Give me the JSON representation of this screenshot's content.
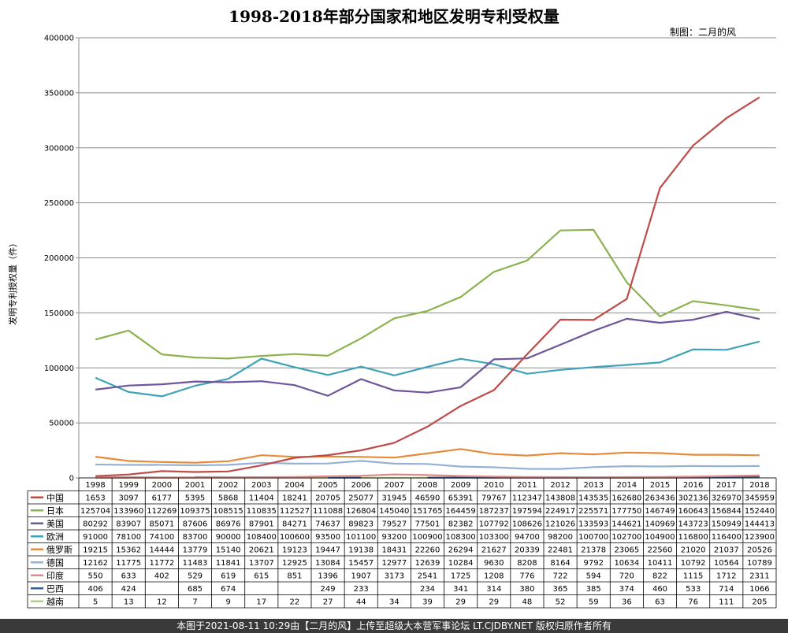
{
  "chart_data": {
    "type": "line",
    "title": "1998-2018年部分国家和地区发明专利受权量",
    "credit": "制图：二月的风",
    "ylabel": "发明专利授权量（件）",
    "ylim": [
      0,
      400000
    ],
    "yticks": [
      "0",
      "50000",
      "100000",
      "150000",
      "200000",
      "250000",
      "300000",
      "350000",
      "400000"
    ],
    "grid": "horizontal",
    "legend": "data-table-bottom",
    "categories": [
      "1998",
      "1999",
      "2000",
      "2001",
      "2002",
      "2003",
      "2004",
      "2005",
      "2006",
      "2007",
      "2008",
      "2009",
      "2010",
      "2011",
      "2012",
      "2013",
      "2014",
      "2015",
      "2016",
      "2017",
      "2018"
    ],
    "series": [
      {
        "name": "中国",
        "color": "#be4b48",
        "values": [
          1653,
          3097,
          6177,
          5395,
          5868,
          11404,
          18241,
          20705,
          25077,
          31945,
          46590,
          65391,
          79767,
          112347,
          143808,
          143535,
          162680,
          263436,
          302136,
          326970,
          345959
        ]
      },
      {
        "name": "日本",
        "color": "#8cb24f",
        "values": [
          125704,
          133960,
          112269,
          109375,
          108515,
          110835,
          112527,
          111088,
          126804,
          145040,
          151765,
          164459,
          187237,
          197594,
          224917,
          225571,
          177750,
          146749,
          160643,
          156844,
          152440
        ]
      },
      {
        "name": "美国",
        "color": "#6f559a",
        "values": [
          80292,
          83907,
          85071,
          87606,
          86976,
          87901,
          84271,
          74637,
          89823,
          79527,
          77501,
          82382,
          107792,
          108626,
          121026,
          133593,
          144621,
          140969,
          143723,
          150949,
          144413
        ]
      },
      {
        "name": "欧洲",
        "color": "#3fa2b8",
        "values": [
          91000,
          78100,
          74100,
          83700,
          90000,
          108400,
          100600,
          93500,
          101100,
          93200,
          100900,
          108300,
          103300,
          94700,
          98200,
          100700,
          102700,
          104900,
          116800,
          116400,
          123900
        ]
      },
      {
        "name": "俄罗斯",
        "color": "#e48c3c",
        "values": [
          19215,
          15362,
          14444,
          13779,
          15140,
          20621,
          19123,
          19447,
          19138,
          18431,
          22260,
          26294,
          21627,
          20339,
          22481,
          21378,
          23065,
          22560,
          21020,
          21037,
          20526
        ]
      },
      {
        "name": "德国",
        "color": "#95b1d6",
        "values": [
          12162,
          11775,
          11772,
          11483,
          11841,
          13707,
          12925,
          13084,
          15457,
          12977,
          12639,
          10284,
          9630,
          8208,
          8164,
          9792,
          10634,
          10411,
          10792,
          10564,
          10789
        ]
      },
      {
        "name": "印度",
        "color": "#de8a88",
        "values": [
          550,
          633,
          402,
          529,
          619,
          615,
          851,
          1396,
          1907,
          3173,
          2541,
          1725,
          1208,
          776,
          722,
          594,
          720,
          822,
          1115,
          1712,
          2311
        ]
      },
      {
        "name": "巴西",
        "color": "#355f97",
        "values": [
          406,
          424,
          null,
          685,
          674,
          null,
          null,
          249,
          233,
          null,
          234,
          341,
          314,
          380,
          365,
          385,
          374,
          460,
          533,
          714,
          1066
        ]
      },
      {
        "name": "越南",
        "color": "#b4cc8c",
        "values": [
          5,
          13,
          12,
          7,
          9,
          17,
          22,
          27,
          44,
          34,
          39,
          29,
          29,
          48,
          52,
          59,
          36,
          63,
          76,
          111,
          205
        ]
      }
    ]
  },
  "footer": {
    "text": "本图于2021-08-11 10:29由【二月的风】上传至超级大本营军事论坛 LT.CJDBY.NET 版权归原作者所有"
  }
}
